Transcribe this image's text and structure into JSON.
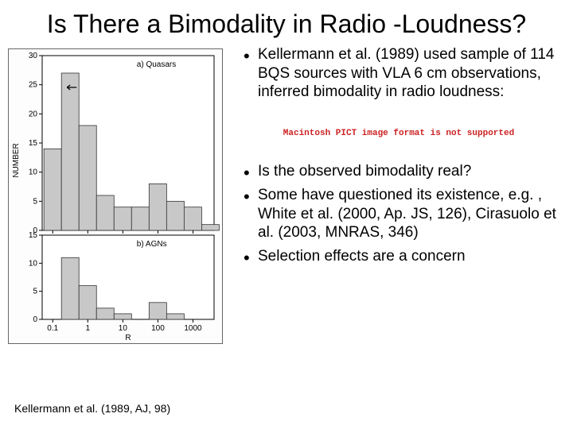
{
  "title": "Is There a Bimodality in Radio -Loudness?",
  "bullets_top": [
    "Kellermann et al. (1989) used sample of 114 BQS sources with VLA 6 cm observations, inferred bimodality in radio loudness:"
  ],
  "pict_message": "Macintosh PICT\nimage format\nis not supported",
  "bullets_bottom": [
    "Is the observed bimodality real?",
    "Some have questioned its existence, e.g. , White et al. (2000, Ap. JS, 126), Cirasuolo et al. (2003, MNRAS, 346)",
    "Selection effects are a concern"
  ],
  "citation": "Kellermann et al. (1989, AJ, 98)",
  "chart": {
    "type": "histogram",
    "panel_a": {
      "label": "a)  Quasars",
      "x_bins": [
        0.1,
        0.316,
        1,
        3.16,
        10,
        31.6,
        100,
        316,
        1000,
        3162
      ],
      "counts": [
        14,
        27,
        18,
        6,
        4,
        4,
        8,
        5,
        4,
        1
      ],
      "ylim": [
        0,
        30
      ],
      "yticks": [
        0,
        5,
        10,
        15,
        20,
        25,
        30
      ],
      "arrow_bin_index": 1
    },
    "panel_b": {
      "label": "b)  AGNs",
      "counts": [
        0,
        11,
        6,
        2,
        1,
        0,
        3,
        1,
        0,
        0
      ],
      "ylim": [
        0,
        15
      ],
      "yticks": [
        0,
        5,
        10,
        15
      ]
    },
    "xlabel": "R",
    "ylabel": "NUMBER",
    "xticks": [
      0.1,
      1,
      10,
      100,
      1000
    ],
    "bar_fill": "#c8c8c8",
    "bar_stroke": "#333333",
    "background": "#ffffff",
    "axis_color": "#000000",
    "font_size_axis": 10,
    "font_size_panel_label": 10
  }
}
